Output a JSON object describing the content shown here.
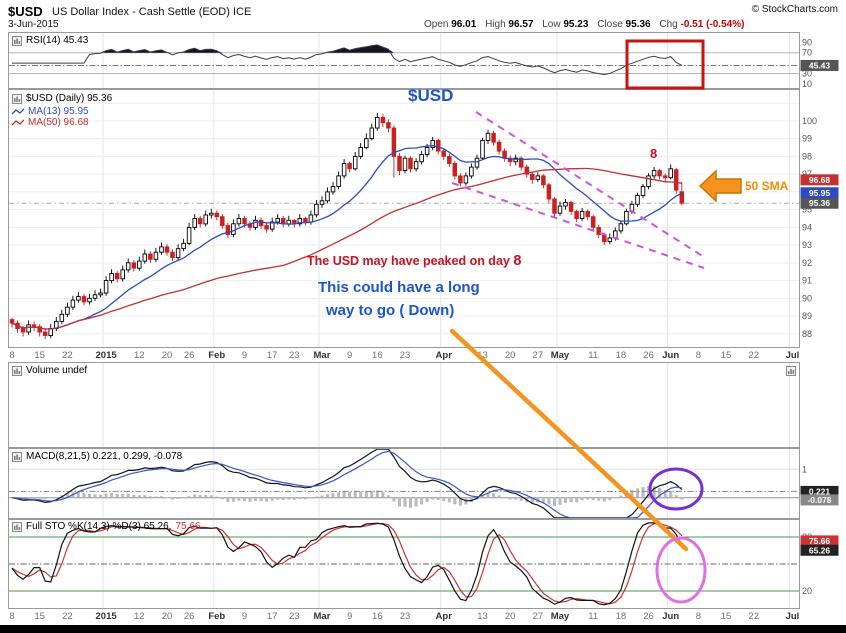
{
  "header": {
    "symbol": "$USD",
    "title": "US Dollar Index - Cash Settle (EOD) ICE",
    "copyright": "© StockCharts.com",
    "date": "3-Jun-2015",
    "quote": {
      "open_label": "Open",
      "open": "96.01",
      "high_label": "High",
      "high": "96.57",
      "low_label": "Low",
      "low": "95.23",
      "close_label": "Close",
      "close": "95.36",
      "chg_label": "Chg",
      "chg": "-0.51 (-0.54%)"
    }
  },
  "legends": {
    "rsi": "RSI(14) 45.43",
    "price_main": "$USD (Daily) 95.36",
    "ma13": "MA(13) 95.95",
    "ma50": "MA(50) 96.68",
    "volume": "Volume undef",
    "macd": "MACD(8,21,5) 0.221, 0.299, -0.078",
    "sto_main": "Full STO %K(14,3) %D(3) 65.26,",
    "sto_d": "75.66"
  },
  "annotations": {
    "usd": "$USD",
    "day8": "8",
    "sma": "50 SMA",
    "peaked": "The USD may have peaked on day",
    "peaked_day": "8",
    "longway1": "This could have a long",
    "longway2": "way to go ( Down)"
  },
  "colors": {
    "anno_red": "#cc1111",
    "anno_blue": "#1c55cc",
    "anno_orange": "#f59220",
    "sma_text": "#ef8f00",
    "anno_purple": "#7a2fd0",
    "anno_pink": "#e070e0",
    "anno_magenta": "#cc55dd",
    "text_red": "#cc1122",
    "quote_chg": "#cc0000",
    "ma13": "#2b4bc4",
    "ma50": "#c23232",
    "candle_down": "#cc2020",
    "box_gray": "#555555",
    "macd_signal": "#3a57c8",
    "sto_d": "#cc3333",
    "sto_level": "#4e9a4e"
  },
  "chart_data": {
    "type": "candlestick",
    "title": "$USD US Dollar Index - Cash Settle (EOD) ICE",
    "date": "3-Jun-2015",
    "today": {
      "open": 96.01,
      "high": 96.57,
      "low": 95.23,
      "close": 95.36,
      "chg": -0.51,
      "chg_pct": -0.54
    },
    "x_axis": {
      "slots": 143,
      "month_separators": [
        17,
        37,
        56,
        78,
        99,
        119,
        141
      ],
      "ticks": [
        {
          "i": 0,
          "t": "8"
        },
        {
          "i": 5,
          "t": "15"
        },
        {
          "i": 10,
          "t": "22"
        },
        {
          "i": 17,
          "t": "2015"
        },
        {
          "i": 23,
          "t": "12"
        },
        {
          "i": 28,
          "t": "20"
        },
        {
          "i": 32,
          "t": "26"
        },
        {
          "i": 37,
          "t": "Feb"
        },
        {
          "i": 42,
          "t": "9"
        },
        {
          "i": 47,
          "t": "17"
        },
        {
          "i": 51,
          "t": "23"
        },
        {
          "i": 56,
          "t": "Mar"
        },
        {
          "i": 61,
          "t": "9"
        },
        {
          "i": 66,
          "t": "16"
        },
        {
          "i": 71,
          "t": "23"
        },
        {
          "i": 78,
          "t": "Apr"
        },
        {
          "i": 85,
          "t": "13"
        },
        {
          "i": 90,
          "t": "20"
        },
        {
          "i": 95,
          "t": "27"
        },
        {
          "i": 99,
          "t": "May"
        },
        {
          "i": 105,
          "t": "11"
        },
        {
          "i": 110,
          "t": "18"
        },
        {
          "i": 115,
          "t": "26"
        },
        {
          "i": 119,
          "t": "Jun"
        },
        {
          "i": 124,
          "t": "8"
        },
        {
          "i": 129,
          "t": "15"
        },
        {
          "i": 134,
          "t": "22"
        },
        {
          "i": 141,
          "t": "Jul"
        }
      ]
    },
    "rsi_panel": {
      "label": "RSI(14)",
      "last": 45.43,
      "ylim": [
        0,
        110
      ],
      "yticks": [
        90,
        70,
        30,
        10
      ],
      "hlines": [
        70,
        30
      ],
      "fill_above": 70
    },
    "price_panel": {
      "ylim": [
        87.2,
        101.8
      ],
      "yticks": [
        100,
        99,
        98,
        97,
        96,
        95,
        94,
        93,
        92,
        91,
        90,
        89,
        88
      ],
      "ma13_last": 95.95,
      "ma50_last": 96.68,
      "close_last": 95.36
    },
    "volume_panel": {
      "label": "Volume",
      "value": "undef"
    },
    "macd_panel": {
      "params": [
        8,
        21,
        5
      ],
      "last": [
        0.221,
        0.299,
        -0.078
      ],
      "ylim": [
        -0.75,
        1.75
      ],
      "yticks": [
        1,
        0
      ]
    },
    "sto_panel": {
      "params": "%K(14,3) %D(3)",
      "last_k": 65.26,
      "last_d": 75.66,
      "ylim": [
        0,
        100
      ],
      "hlines": [
        80,
        50,
        20
      ],
      "yticks": [
        80,
        20
      ]
    },
    "candles": [
      [
        88.8,
        88.9,
        88.35,
        88.6
      ],
      [
        88.6,
        88.75,
        88.05,
        88.3
      ],
      [
        88.3,
        88.45,
        87.85,
        88.1
      ],
      [
        88.1,
        88.75,
        87.95,
        88.5
      ],
      [
        88.5,
        88.7,
        88.15,
        88.4
      ],
      [
        88.4,
        88.55,
        87.85,
        88.1
      ],
      [
        88.1,
        88.3,
        87.7,
        87.9
      ],
      [
        87.9,
        88.55,
        87.75,
        88.3
      ],
      [
        88.3,
        88.95,
        88.15,
        88.7
      ],
      [
        88.7,
        89.35,
        88.55,
        89.1
      ],
      [
        89.1,
        89.75,
        88.95,
        89.5
      ],
      [
        89.5,
        90.15,
        89.35,
        89.9
      ],
      [
        89.9,
        90.35,
        89.75,
        90.1
      ],
      [
        90.1,
        90.25,
        89.6,
        89.8
      ],
      [
        89.8,
        90.25,
        89.65,
        90.0
      ],
      [
        90.0,
        90.45,
        89.85,
        90.2
      ],
      [
        90.2,
        90.55,
        90.05,
        90.3
      ],
      [
        90.3,
        91.25,
        90.15,
        91.0
      ],
      [
        91.0,
        91.65,
        90.85,
        91.4
      ],
      [
        91.4,
        91.55,
        90.9,
        91.1
      ],
      [
        91.1,
        91.85,
        90.95,
        91.6
      ],
      [
        91.6,
        92.25,
        91.45,
        92.0
      ],
      [
        92.0,
        92.15,
        91.5,
        91.7
      ],
      [
        91.7,
        92.35,
        91.55,
        92.1
      ],
      [
        92.1,
        92.75,
        91.95,
        92.5
      ],
      [
        92.5,
        92.65,
        92.0,
        92.2
      ],
      [
        92.2,
        92.85,
        92.05,
        92.6
      ],
      [
        92.6,
        93.15,
        92.45,
        92.9
      ],
      [
        92.9,
        93.05,
        92.4,
        92.6
      ],
      [
        92.6,
        92.75,
        92.1,
        92.3
      ],
      [
        92.3,
        93.05,
        92.15,
        92.8
      ],
      [
        92.8,
        93.35,
        92.65,
        93.1
      ],
      [
        93.1,
        94.25,
        93.0,
        94.0
      ],
      [
        94.0,
        94.75,
        93.85,
        94.5
      ],
      [
        94.5,
        94.65,
        94.0,
        94.2
      ],
      [
        94.2,
        94.95,
        94.05,
        94.7
      ],
      [
        94.7,
        95.05,
        94.5,
        94.8
      ],
      [
        94.8,
        94.95,
        94.4,
        94.6
      ],
      [
        94.6,
        94.75,
        93.9,
        94.1
      ],
      [
        94.1,
        94.25,
        93.4,
        93.6
      ],
      [
        93.6,
        94.45,
        93.45,
        94.2
      ],
      [
        94.2,
        94.75,
        94.05,
        94.5
      ],
      [
        94.5,
        94.65,
        94.0,
        94.2
      ],
      [
        94.2,
        94.35,
        93.8,
        94.0
      ],
      [
        94.0,
        94.65,
        93.85,
        94.4
      ],
      [
        94.4,
        94.55,
        93.9,
        94.1
      ],
      [
        94.1,
        94.25,
        93.7,
        93.9
      ],
      [
        93.9,
        94.55,
        93.75,
        94.3
      ],
      [
        94.3,
        94.75,
        94.15,
        94.5
      ],
      [
        94.5,
        94.65,
        94.0,
        94.2
      ],
      [
        94.2,
        94.65,
        94.05,
        94.4
      ],
      [
        94.4,
        94.45,
        94.0,
        94.2
      ],
      [
        94.2,
        94.75,
        94.05,
        94.5
      ],
      [
        94.5,
        94.6,
        94.1,
        94.3
      ],
      [
        94.3,
        94.95,
        94.15,
        94.7
      ],
      [
        94.7,
        95.55,
        94.55,
        95.3
      ],
      [
        95.3,
        95.75,
        95.1,
        95.5
      ],
      [
        95.5,
        96.25,
        95.35,
        96.0
      ],
      [
        96.0,
        96.55,
        95.85,
        96.3
      ],
      [
        96.3,
        97.15,
        96.15,
        96.9
      ],
      [
        96.9,
        97.85,
        96.75,
        97.6
      ],
      [
        97.6,
        97.7,
        97.1,
        97.3
      ],
      [
        97.3,
        98.25,
        97.2,
        98.0
      ],
      [
        98.0,
        98.75,
        97.85,
        98.5
      ],
      [
        98.5,
        99.3,
        98.4,
        99.0
      ],
      [
        99.0,
        99.85,
        98.9,
        99.6
      ],
      [
        99.6,
        100.45,
        99.45,
        100.2
      ],
      [
        100.2,
        100.4,
        99.65,
        99.9
      ],
      [
        99.9,
        100.1,
        99.35,
        99.6
      ],
      [
        99.6,
        99.75,
        96.8,
        98.0
      ],
      [
        98.0,
        98.2,
        96.95,
        97.2
      ],
      [
        97.2,
        98.05,
        97.05,
        97.9
      ],
      [
        97.9,
        98.0,
        97.1,
        97.3
      ],
      [
        97.3,
        97.9,
        97.15,
        97.7
      ],
      [
        97.7,
        98.3,
        97.55,
        98.1
      ],
      [
        98.1,
        98.7,
        97.95,
        98.5
      ],
      [
        98.5,
        99.1,
        98.35,
        98.9
      ],
      [
        98.9,
        99.0,
        98.1,
        98.3
      ],
      [
        98.3,
        98.45,
        97.8,
        98.0
      ],
      [
        98.0,
        98.15,
        97.4,
        97.6
      ],
      [
        97.6,
        97.75,
        96.7,
        96.9
      ],
      [
        96.9,
        97.05,
        96.3,
        96.5
      ],
      [
        96.5,
        97.1,
        96.35,
        96.9
      ],
      [
        96.9,
        97.6,
        96.75,
        97.4
      ],
      [
        97.4,
        98.1,
        97.25,
        97.9
      ],
      [
        97.9,
        99.05,
        97.8,
        98.9
      ],
      [
        98.9,
        99.5,
        98.7,
        99.3
      ],
      [
        99.3,
        99.45,
        98.6,
        98.8
      ],
      [
        98.8,
        98.95,
        98.1,
        98.3
      ],
      [
        98.3,
        98.45,
        97.7,
        97.9
      ],
      [
        97.9,
        98.05,
        97.45,
        97.7
      ],
      [
        97.7,
        98.1,
        97.5,
        97.9
      ],
      [
        97.9,
        98.0,
        97.2,
        97.4
      ],
      [
        97.4,
        97.55,
        96.8,
        97.0
      ],
      [
        97.0,
        97.15,
        96.45,
        96.7
      ],
      [
        96.7,
        97.1,
        96.55,
        96.9
      ],
      [
        96.9,
        97.0,
        96.2,
        96.4
      ],
      [
        96.4,
        96.5,
        95.4,
        95.6
      ],
      [
        95.6,
        95.7,
        94.55,
        94.8
      ],
      [
        94.8,
        95.45,
        94.65,
        95.2
      ],
      [
        95.2,
        95.6,
        95.0,
        95.4
      ],
      [
        95.4,
        95.5,
        94.7,
        94.9
      ],
      [
        94.9,
        95.0,
        94.3,
        94.5
      ],
      [
        94.5,
        95.1,
        94.35,
        94.9
      ],
      [
        94.9,
        95.0,
        94.4,
        94.6
      ],
      [
        94.6,
        94.7,
        93.8,
        94.0
      ],
      [
        94.0,
        94.15,
        93.4,
        93.6
      ],
      [
        93.6,
        93.7,
        93.0,
        93.2
      ],
      [
        93.2,
        93.65,
        93.05,
        93.4
      ],
      [
        93.4,
        94.0,
        93.25,
        93.8
      ],
      [
        93.8,
        94.4,
        93.65,
        94.2
      ],
      [
        94.2,
        95.05,
        94.1,
        94.9
      ],
      [
        94.9,
        95.5,
        94.75,
        95.3
      ],
      [
        95.3,
        95.95,
        95.15,
        95.8
      ],
      [
        95.8,
        96.45,
        95.65,
        96.3
      ],
      [
        96.3,
        97.05,
        96.15,
        96.9
      ],
      [
        96.9,
        97.4,
        96.75,
        97.2
      ],
      [
        97.2,
        97.3,
        96.7,
        96.9
      ],
      [
        96.9,
        97.05,
        96.55,
        96.8
      ],
      [
        96.8,
        97.55,
        96.7,
        97.3
      ],
      [
        97.25,
        97.35,
        95.9,
        96.1
      ],
      [
        96.01,
        96.57,
        95.23,
        95.36
      ]
    ]
  }
}
